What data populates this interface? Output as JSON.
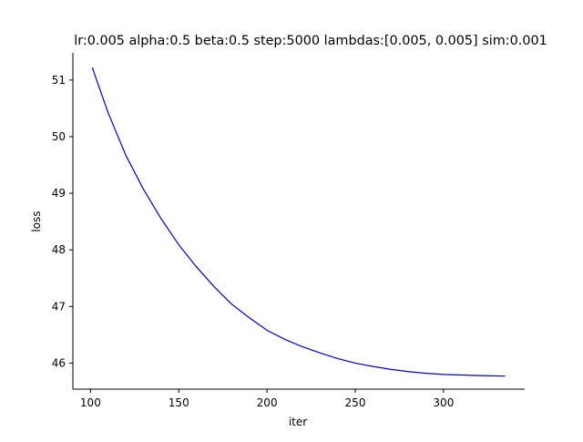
{
  "chart_data": {
    "type": "line",
    "title": "lr:0.005 alpha:0.5 beta:0.5 step:5000 lambdas:[0.005, 0.005] sim:0.001",
    "xlabel": "iter",
    "ylabel": "loss",
    "xlim": [
      90,
      346
    ],
    "ylim": [
      45.54,
      51.48
    ],
    "xticks": [
      100,
      150,
      200,
      250,
      300
    ],
    "yticks": [
      46,
      47,
      48,
      49,
      50,
      51
    ],
    "grid": false,
    "legend": "none",
    "spines": "left-bottom",
    "line_color": "#0000cc",
    "series": [
      {
        "x": [
          101,
          110,
          120,
          130,
          140,
          150,
          160,
          170,
          180,
          190,
          200,
          210,
          220,
          230,
          240,
          250,
          260,
          270,
          280,
          290,
          300,
          310,
          320,
          335
        ],
        "y": [
          51.22,
          50.42,
          49.67,
          49.07,
          48.55,
          48.09,
          47.7,
          47.35,
          47.04,
          46.8,
          46.58,
          46.42,
          46.29,
          46.18,
          46.08,
          46.0,
          45.94,
          45.89,
          45.85,
          45.82,
          45.8,
          45.79,
          45.78,
          45.77
        ]
      }
    ]
  }
}
